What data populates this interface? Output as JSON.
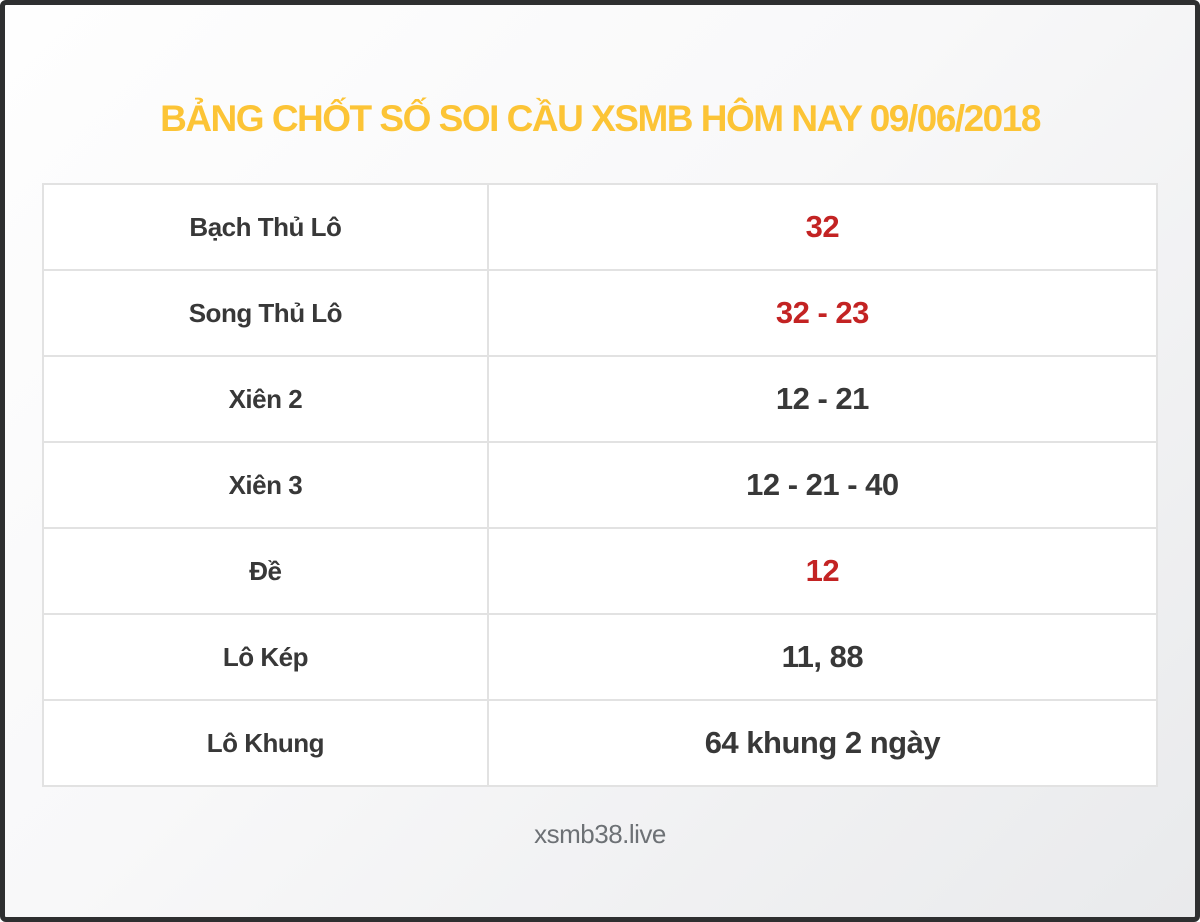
{
  "page": {
    "title": "BẢNG CHỐT SỐ SOI CẦU XSMB HÔM NAY 09/06/2018",
    "footer": "xsmb38.live"
  },
  "colors": {
    "title_yellow": "#fcc436",
    "highlight_red": "#c32323",
    "text_dark": "#383838",
    "footer_gray": "#6d7175",
    "outer_border": "#2e2f30",
    "cell_border": "#e2e2e2"
  },
  "table": {
    "rows": [
      {
        "label": "Bạch Thủ Lô",
        "value": "32",
        "highlight": true
      },
      {
        "label": "Song Thủ Lô",
        "value": "32 - 23",
        "highlight": true
      },
      {
        "label": "Xiên 2",
        "value": "12 - 21",
        "highlight": false
      },
      {
        "label": "Xiên 3",
        "value": "12 - 21 - 40",
        "highlight": false
      },
      {
        "label": "Đề",
        "value": "12",
        "highlight": true
      },
      {
        "label": "Lô Kép",
        "value": "11, 88",
        "highlight": false
      },
      {
        "label": "Lô Khung",
        "value": "64 khung 2 ngày",
        "highlight": false
      }
    ]
  }
}
